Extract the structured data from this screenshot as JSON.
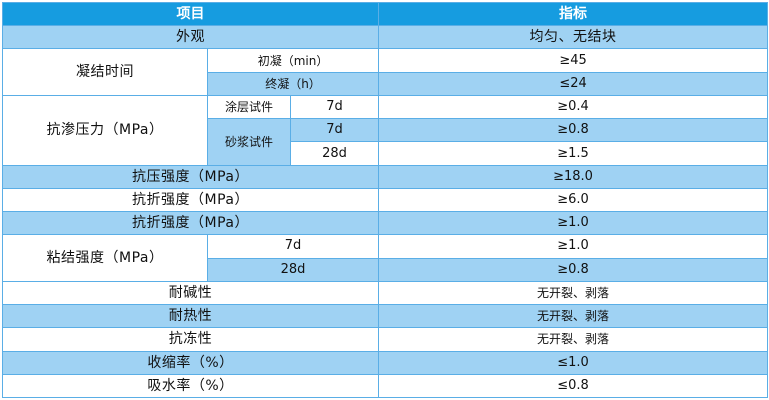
{
  "header": {
    "item": "项目",
    "index": "指标"
  },
  "rows": {
    "appearance": {
      "label": "外观",
      "value": "均匀、无结块"
    },
    "setting": {
      "label": "凝结时间",
      "initial": {
        "label": "初凝（min）",
        "value": "≥45"
      },
      "final": {
        "label": "终凝（h）",
        "value": "≤24"
      }
    },
    "impermeability": {
      "label": "抗渗压力（MPa）",
      "coating": {
        "label": "涂层试件",
        "age": "7d",
        "value": "≥0.4"
      },
      "mortar": {
        "label": "砂浆试件",
        "d7": {
          "age": "7d",
          "value": "≥0.8"
        },
        "d28": {
          "age": "28d",
          "value": "≥1.5"
        }
      }
    },
    "compressive": {
      "label": "抗压强度（MPa）",
      "value": "≥18.0"
    },
    "flexural1": {
      "label": "抗折强度（MPa）",
      "value": "≥6.0"
    },
    "flexural2": {
      "label": "抗折强度（MPa）",
      "value": "≥1.0"
    },
    "bond": {
      "label": "粘结强度（MPa）",
      "d7": {
        "age": "7d",
        "value": "≥1.0"
      },
      "d28": {
        "age": "28d",
        "value": "≥0.8"
      }
    },
    "alkali": {
      "label": "耐碱性",
      "value": "无开裂、剥落"
    },
    "heat": {
      "label": "耐热性",
      "value": "无开裂、剥落"
    },
    "freeze": {
      "label": "抗冻性",
      "value": "无开裂、剥落"
    },
    "shrinkage": {
      "label": "收缩率（%）",
      "value": "≤1.0"
    },
    "absorption": {
      "label": "吸水率（%）",
      "value": "≤0.8"
    }
  }
}
